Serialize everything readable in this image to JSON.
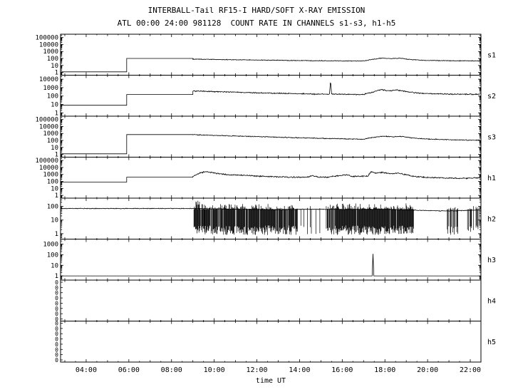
{
  "title": {
    "line1": "INTERBALL-Tail RF15-I HARD/SOFT X-RAY EMISSION",
    "line2": "ATL 00:00 24:00 981128  COUNT RATE IN CHANNELS s1-s3, h1-h5"
  },
  "chart_data": {
    "type": "line",
    "title": "INTERBALL-Tail RF15-I HARD/SOFT X-RAY EMISSION",
    "subtitle": "ATL 00:00 24:00 981128  COUNT RATE IN CHANNELS s1-s3, h1-h5",
    "xlabel": "time UT",
    "x_units": "hours UT",
    "x_range": [
      2.8,
      22.5
    ],
    "x_major_ticks": [
      4,
      6,
      8,
      10,
      12,
      14,
      16,
      18,
      20,
      22
    ],
    "x_tick_labels": [
      "04:00",
      "06:00",
      "08:00",
      "10:00",
      "12:00",
      "14:00",
      "16:00",
      "18:00",
      "20:00",
      "22:00"
    ],
    "grid": false,
    "legend": "none",
    "panels": [
      {
        "label": "s1",
        "scale": "log",
        "ymin": 0.4,
        "ymax": 300000,
        "yticks": [
          1,
          10,
          100,
          1000,
          10000,
          100000
        ],
        "segments": [
          {
            "type": "flat",
            "t0": 2.8,
            "t1": 5.9,
            "v": 1.2
          },
          {
            "type": "flat",
            "t0": 5.9,
            "t1": 9.0,
            "v": 100
          },
          {
            "type": "keys",
            "noise": 0.06,
            "keys": [
              [
                9,
                80
              ],
              [
                10,
                72
              ],
              [
                11,
                65
              ],
              [
                12,
                60
              ],
              [
                13,
                55
              ],
              [
                14,
                50
              ],
              [
                15,
                48
              ],
              [
                16,
                45
              ],
              [
                17,
                44
              ],
              [
                17.4,
                70
              ],
              [
                17.8,
                110
              ],
              [
                18.3,
                95
              ],
              [
                18.7,
                110
              ],
              [
                19.2,
                70
              ],
              [
                19.8,
                55
              ],
              [
                20.5,
                50
              ],
              [
                21.3,
                46
              ],
              [
                22.45,
                44
              ]
            ]
          }
        ]
      },
      {
        "label": "s2",
        "scale": "log",
        "ymin": 0.4,
        "ymax": 30000,
        "yticks": [
          1,
          10,
          100,
          1000,
          10000
        ],
        "segments": [
          {
            "type": "flat",
            "t0": 2.8,
            "t1": 5.9,
            "v": 8
          },
          {
            "type": "flat",
            "t0": 5.9,
            "t1": 9.0,
            "v": 150
          },
          {
            "type": "keys",
            "noise": 0.08,
            "keys": [
              [
                9,
                400
              ],
              [
                10,
                330
              ],
              [
                11,
                280
              ],
              [
                12,
                240
              ],
              [
                13,
                210
              ],
              [
                14,
                185
              ],
              [
                15,
                170
              ],
              [
                15.4,
                165
              ],
              [
                15.45,
                7000
              ],
              [
                15.5,
                165
              ],
              [
                16,
                160
              ],
              [
                17,
                155
              ],
              [
                17.4,
                280
              ],
              [
                17.8,
                550
              ],
              [
                18.2,
                420
              ],
              [
                18.6,
                520
              ],
              [
                19.1,
                300
              ],
              [
                19.6,
                220
              ],
              [
                20.3,
                185
              ],
              [
                21,
                170
              ],
              [
                22.45,
                160
              ]
            ]
          }
        ]
      },
      {
        "label": "s3",
        "scale": "log",
        "ymin": 0.4,
        "ymax": 300000,
        "yticks": [
          1,
          10,
          100,
          1000,
          10000,
          100000
        ],
        "segments": [
          {
            "type": "flat",
            "t0": 2.8,
            "t1": 5.9,
            "v": 1.2
          },
          {
            "type": "flat",
            "t0": 5.9,
            "t1": 9.0,
            "v": 700
          },
          {
            "type": "keys",
            "noise": 0.07,
            "keys": [
              [
                9,
                650
              ],
              [
                10,
                520
              ],
              [
                11,
                430
              ],
              [
                12,
                350
              ],
              [
                13,
                290
              ],
              [
                14,
                240
              ],
              [
                15,
                200
              ],
              [
                16,
                170
              ],
              [
                17,
                150
              ],
              [
                17.4,
                260
              ],
              [
                17.9,
                420
              ],
              [
                18.4,
                330
              ],
              [
                18.8,
                380
              ],
              [
                19.3,
                220
              ],
              [
                20,
                160
              ],
              [
                20.8,
                130
              ],
              [
                21.6,
                115
              ],
              [
                22.45,
                110
              ]
            ]
          }
        ]
      },
      {
        "label": "h1",
        "scale": "log",
        "ymin": 0.4,
        "ymax": 300000,
        "yticks": [
          1,
          10,
          100,
          1000,
          10000,
          100000
        ],
        "segments": [
          {
            "type": "flat",
            "t0": 2.8,
            "t1": 5.9,
            "v": 80
          },
          {
            "type": "flat",
            "t0": 5.9,
            "t1": 9.0,
            "v": 400
          },
          {
            "type": "keys",
            "noise": 0.1,
            "keys": [
              [
                9,
                500
              ],
              [
                9.3,
                1500
              ],
              [
                9.6,
                2600
              ],
              [
                9.9,
                1800
              ],
              [
                10.5,
                1000
              ],
              [
                11.5,
                700
              ],
              [
                12.5,
                500
              ],
              [
                13.5,
                420
              ],
              [
                14.3,
                380
              ],
              [
                14.6,
                650
              ],
              [
                14.9,
                400
              ],
              [
                15.2,
                380
              ],
              [
                16.2,
                900
              ],
              [
                16.5,
                500
              ],
              [
                17.2,
                600
              ],
              [
                17.35,
                2500
              ],
              [
                17.6,
                1500
              ],
              [
                17.9,
                2000
              ],
              [
                18.3,
                1200
              ],
              [
                18.6,
                1600
              ],
              [
                19,
                900
              ],
              [
                19.4,
                500
              ],
              [
                20.2,
                350
              ],
              [
                21,
                300
              ],
              [
                21.8,
                280
              ],
              [
                22.45,
                350
              ]
            ]
          }
        ]
      },
      {
        "label": "h2",
        "scale": "log",
        "ymin": 0.4,
        "ymax": 400,
        "yticks": [
          1,
          10,
          100
        ],
        "segments": [
          {
            "type": "keys",
            "noise": 0.03,
            "keys": [
              [
                2.8,
                70
              ],
              [
                9,
                70
              ],
              [
                11,
                62
              ],
              [
                13,
                58
              ],
              [
                14.5,
                62
              ],
              [
                16,
                60
              ],
              [
                18,
                62
              ],
              [
                19.5,
                52
              ],
              [
                20.2,
                48
              ],
              [
                21,
                46
              ],
              [
                21.8,
                50
              ],
              [
                22.45,
                55
              ]
            ]
          }
        ],
        "dropouts": [
          {
            "t0": 9.05,
            "t1": 9.55,
            "density": 0.97,
            "high": 280,
            "low": 0.8
          },
          {
            "t0": 9.55,
            "t1": 13.9,
            "density": 0.95,
            "high": 150,
            "low": 0.8
          },
          {
            "t0": 13.9,
            "t1": 15.25,
            "density": 0.12,
            "high": 120,
            "low": 0.8
          },
          {
            "t0": 15.25,
            "t1": 19.35,
            "density": 0.95,
            "high": 170,
            "low": 0.8
          },
          {
            "t0": 20.9,
            "t1": 21.45,
            "density": 0.4,
            "high": 95,
            "low": 0.8
          },
          {
            "t0": 21.85,
            "t1": 22.45,
            "density": 0.55,
            "high": 105,
            "low": 0.8
          }
        ]
      },
      {
        "label": "h3",
        "scale": "log",
        "ymin": 0.4,
        "ymax": 3000,
        "yticks": [
          1,
          10,
          100,
          1000
        ],
        "segments": [
          {
            "type": "keys",
            "noise": 0,
            "keys": [
              [
                2.8,
                1
              ],
              [
                17.4,
                1
              ],
              [
                17.44,
                120
              ],
              [
                17.48,
                1
              ],
              [
                22.45,
                1
              ]
            ]
          }
        ]
      },
      {
        "label": "h4",
        "scale": "none",
        "yticks_text": [
          "0",
          "0",
          "0",
          "0",
          "0",
          "0",
          "0",
          "0"
        ],
        "segments": []
      },
      {
        "label": "h5",
        "scale": "none",
        "yticks_text": [
          "0",
          "0",
          "0",
          "0",
          "0",
          "0",
          "0",
          "0"
        ],
        "segments": []
      }
    ]
  }
}
